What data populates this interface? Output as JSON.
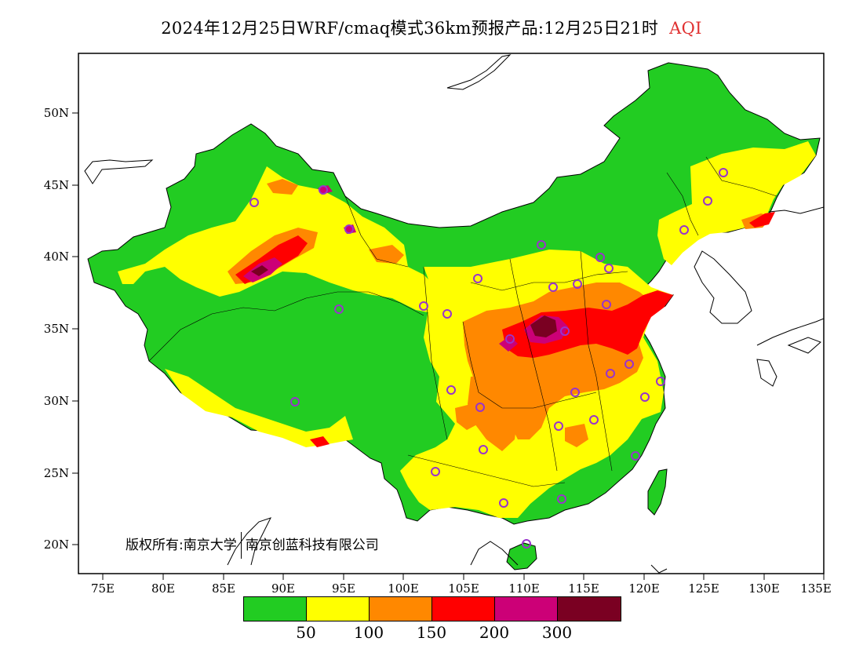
{
  "title": {
    "main": "2024年12月25日WRF/cmaq模式36km预报产品:12月25日21时",
    "variable": "AQI",
    "variable_color": "#e03030"
  },
  "axes": {
    "lat_labels": [
      "50N",
      "45N",
      "40N",
      "35N",
      "30N",
      "25N",
      "20N"
    ],
    "lon_labels": [
      "75E",
      "80E",
      "85E",
      "90E",
      "95E",
      "100E",
      "105E",
      "110E",
      "115E",
      "120E",
      "125E",
      "130E",
      "135E"
    ]
  },
  "copyright": {
    "part1": "版权所有:南京大学",
    "part2": "南京创蓝科技有限公司"
  },
  "legend": {
    "colors": [
      "#22cc22",
      "#ffff00",
      "#ff8800",
      "#ff0000",
      "#cc0077",
      "#7a0022"
    ],
    "labels": [
      "50",
      "100",
      "150",
      "200",
      "300"
    ]
  },
  "colors": {
    "ocean": "#ffffff",
    "site_marker": "#9933cc"
  }
}
